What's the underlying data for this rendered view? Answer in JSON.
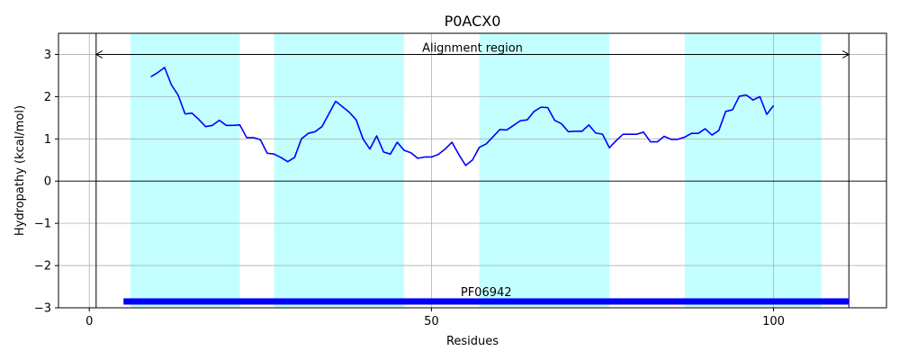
{
  "chart_data": {
    "type": "line",
    "title": "P0ACX0",
    "xlabel": "Residues",
    "ylabel": "Hydropathy (kcal/mol)",
    "xlim": [
      -4.5,
      116.5
    ],
    "ylim": [
      -3,
      3.5
    ],
    "xticks": [
      0,
      50,
      100
    ],
    "yticks": [
      -3,
      -2,
      -1,
      0,
      1,
      2,
      3
    ],
    "ytick_labels": [
      "−3",
      "−2",
      "−1",
      "0",
      "1",
      "2",
      "3"
    ],
    "grid": true,
    "series": [
      {
        "name": "Hydropathy",
        "color": "#0000ff",
        "x": [
          9,
          10,
          11,
          12,
          13,
          14,
          15,
          16,
          17,
          18,
          19,
          20,
          21,
          22,
          23,
          24,
          25,
          26,
          27,
          28,
          29,
          30,
          31,
          32,
          33,
          34,
          35,
          36,
          37,
          38,
          39,
          40,
          41,
          42,
          43,
          44,
          45,
          46,
          47,
          48,
          49,
          50,
          51,
          52,
          53,
          54,
          55,
          56,
          57,
          58,
          59,
          60,
          61,
          62,
          63,
          64,
          65,
          66,
          67,
          68,
          69,
          70,
          71,
          72,
          73,
          74,
          75,
          76,
          77,
          78,
          79,
          80,
          81,
          82,
          83,
          84,
          85,
          86,
          87,
          88,
          89,
          90,
          91,
          92,
          93,
          94,
          95,
          96,
          97,
          98,
          99,
          100
        ],
        "y": [
          2.47,
          2.57,
          2.69,
          2.28,
          2.03,
          1.59,
          1.61,
          1.46,
          1.29,
          1.32,
          1.44,
          1.32,
          1.32,
          1.33,
          1.03,
          1.03,
          0.98,
          0.66,
          0.64,
          0.56,
          0.46,
          0.56,
          1.0,
          1.13,
          1.17,
          1.29,
          1.59,
          1.89,
          1.76,
          1.63,
          1.45,
          1.0,
          0.76,
          1.07,
          0.69,
          0.64,
          0.92,
          0.73,
          0.67,
          0.54,
          0.57,
          0.57,
          0.63,
          0.76,
          0.92,
          0.63,
          0.37,
          0.5,
          0.8,
          0.88,
          1.05,
          1.22,
          1.21,
          1.32,
          1.43,
          1.45,
          1.65,
          1.75,
          1.74,
          1.44,
          1.36,
          1.17,
          1.18,
          1.18,
          1.33,
          1.14,
          1.11,
          0.79,
          0.96,
          1.11,
          1.11,
          1.11,
          1.16,
          0.93,
          0.93,
          1.06,
          0.99,
          0.99,
          1.04,
          1.13,
          1.13,
          1.24,
          1.09,
          1.2,
          1.65,
          1.69,
          2.01,
          2.04,
          1.92,
          2.0,
          1.58,
          1.79
        ]
      }
    ],
    "bands": [
      [
        6,
        22
      ],
      [
        27,
        46
      ],
      [
        57,
        76
      ],
      [
        87,
        107
      ]
    ],
    "band_color": "#c3ffff",
    "vlines": [
      1,
      111
    ],
    "hline": 0,
    "annotation": {
      "text": "Alignment region",
      "y": 3,
      "x_start": 1,
      "x_end": 111,
      "text_x": 56
    },
    "domain_bar": {
      "label": "PF06942",
      "x_start": 5,
      "x_end": 111,
      "y": -2.85,
      "color": "#0000ff",
      "label_x": 58
    }
  }
}
